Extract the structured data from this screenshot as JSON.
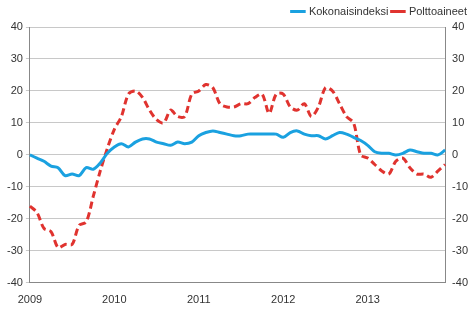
{
  "chart_data": {
    "type": "line",
    "categories": [
      "2009",
      null,
      null,
      null,
      null,
      null,
      null,
      null,
      null,
      null,
      null,
      null,
      "2010",
      null,
      null,
      null,
      null,
      null,
      null,
      null,
      null,
      null,
      null,
      null,
      "2011",
      null,
      null,
      null,
      null,
      null,
      null,
      null,
      null,
      null,
      null,
      null,
      "2012",
      null,
      null,
      null,
      null,
      null,
      null,
      null,
      null,
      null,
      null,
      null,
      "2013",
      null,
      null,
      null,
      null,
      null,
      null,
      null,
      null,
      null,
      null,
      null
    ],
    "series": [
      {
        "name": "Kokonaisindeksi",
        "color": "#1aa1e0",
        "line_style": "solid",
        "values": [
          0,
          -1,
          -2,
          -3.5,
          -4,
          -6.5,
          -6,
          -6.5,
          -4,
          -4.5,
          -2.5,
          0.5,
          2.5,
          3.5,
          2.5,
          4,
          5,
          5,
          4,
          3.5,
          3,
          4,
          3.5,
          4,
          6,
          7,
          7.5,
          7,
          6.5,
          6,
          6,
          6.5,
          6.5,
          6.5,
          6.5,
          6.5,
          5.5,
          7,
          7.5,
          6.5,
          6,
          6,
          5,
          6,
          7,
          6.5,
          5.5,
          4.5,
          3,
          1,
          0.5,
          0.5,
          0,
          0.5,
          1.5,
          1,
          0.5,
          0.5,
          0,
          1.5
        ]
      },
      {
        "name": "Polttoaineet",
        "color": "#e0332f",
        "line_style": "dashed",
        "values": [
          -16,
          -18,
          -23,
          -24,
          -29,
          -28,
          -28,
          -22,
          -21,
          -13,
          -5,
          2,
          8,
          12,
          19,
          20,
          18,
          14,
          11,
          10,
          14,
          12,
          12,
          19,
          20,
          22,
          21,
          16,
          15,
          15,
          16,
          16,
          18,
          19,
          13,
          19,
          19,
          15,
          14,
          16,
          12,
          15,
          21,
          20,
          16,
          12,
          10,
          0,
          -1,
          -3,
          -5,
          -6,
          -2,
          -1,
          -4,
          -6,
          -6,
          -7,
          -5,
          -3
        ]
      }
    ],
    "ylim": [
      -40,
      40
    ],
    "yticks": [
      -40,
      -30,
      -20,
      -10,
      0,
      10,
      20,
      30,
      40
    ],
    "y2lim": [
      -40,
      40
    ],
    "y2ticks": [
      -40,
      -30,
      -20,
      -10,
      0,
      10,
      20,
      30,
      40
    ],
    "grid": true,
    "legend": "top-right"
  }
}
